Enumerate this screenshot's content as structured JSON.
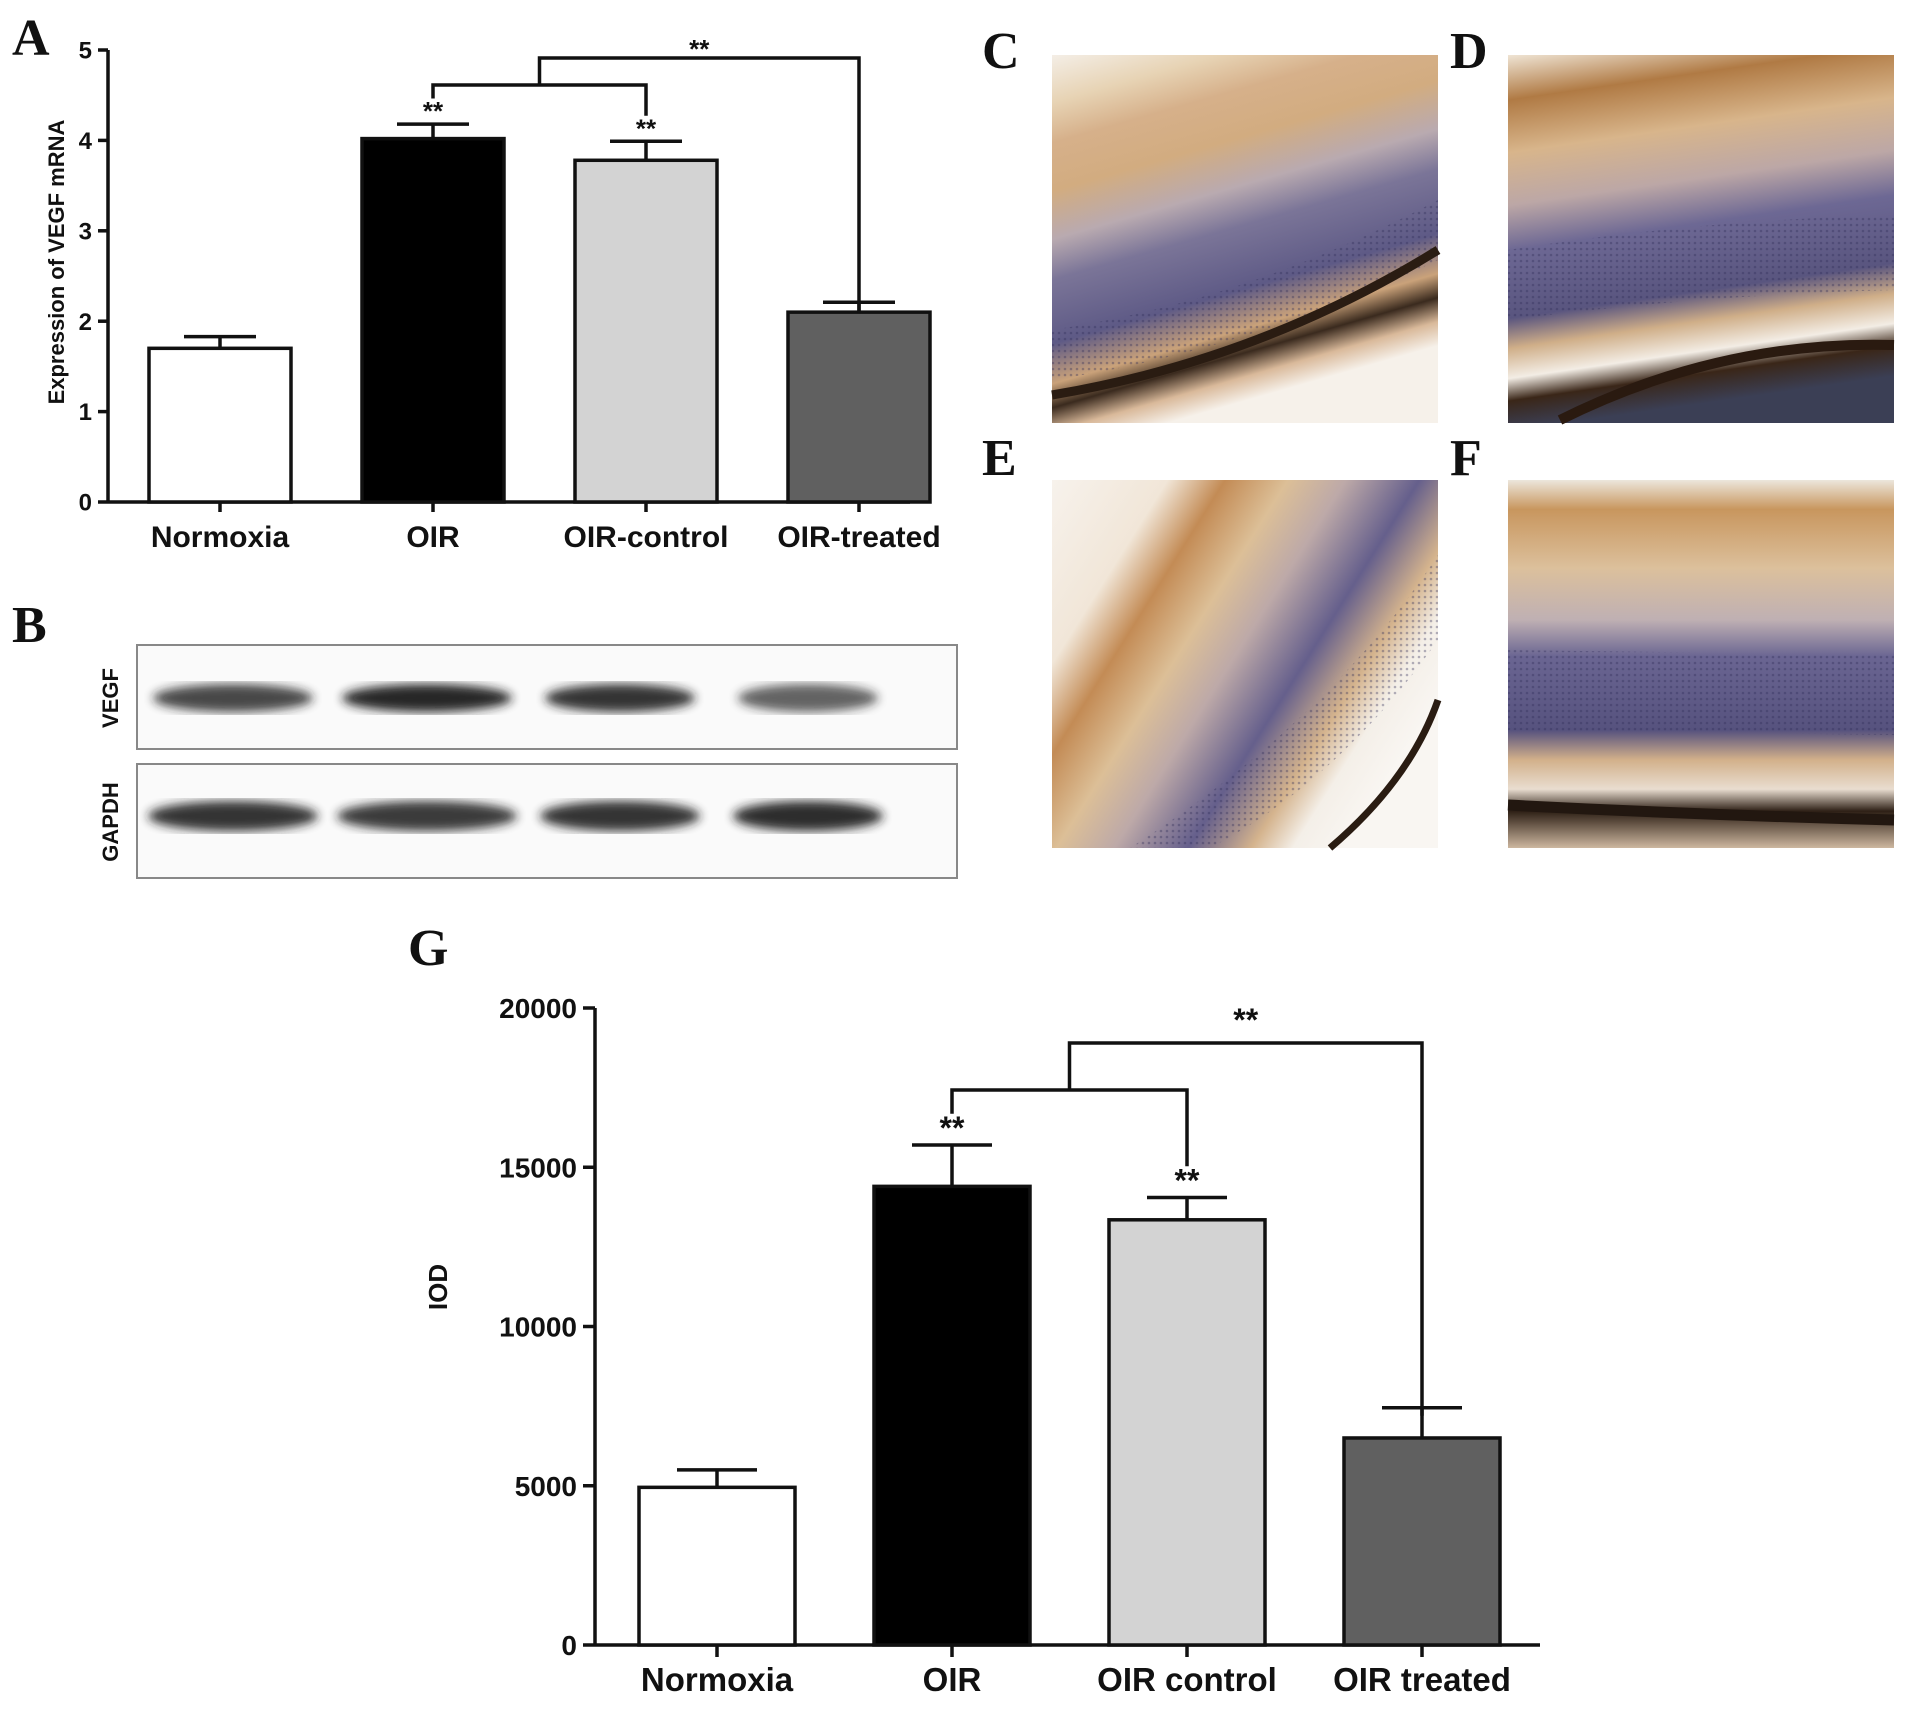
{
  "panels": {
    "A": "A",
    "B": "B",
    "C": "C",
    "D": "D",
    "E": "E",
    "F": "F",
    "G": "G"
  },
  "chart_data": [
    {
      "panel": "A",
      "type": "bar",
      "categories": [
        "Normoxia",
        "OIR",
        "OIR-control",
        "OIR-treated"
      ],
      "values": [
        1.7,
        4.02,
        3.78,
        2.1
      ],
      "errors": [
        0.13,
        0.16,
        0.21,
        0.11
      ],
      "bar_colors": [
        "#ffffff",
        "#000000",
        "#d3d3d3",
        "#606060"
      ],
      "ylabel": "Expression of VEGF mRNA",
      "ylim": [
        0,
        5
      ],
      "yticks": [
        "0",
        "1",
        "2",
        "3",
        "4",
        "5"
      ],
      "significance": "**"
    },
    {
      "panel": "G",
      "type": "bar",
      "categories": [
        "Normoxia",
        "OIR",
        "OIR control",
        "OIR treated"
      ],
      "values": [
        4950,
        14400,
        13350,
        6500
      ],
      "errors": [
        550,
        1300,
        700,
        950
      ],
      "bar_colors": [
        "#ffffff",
        "#000000",
        "#d3d3d3",
        "#606060"
      ],
      "ylabel": "IOD",
      "ylim": [
        0,
        20000
      ],
      "yticks": [
        "0",
        "5000",
        "10000",
        "15000",
        "20000"
      ],
      "significance": "**"
    }
  ],
  "blot": {
    "rows": [
      "VEGF",
      "GAPDH"
    ],
    "vegf_intensity": [
      0.75,
      1.0,
      0.9,
      0.55
    ],
    "gapdh_intensity": [
      0.9,
      0.85,
      0.9,
      0.95
    ]
  },
  "micrographs": {
    "stain_color": "#c69556",
    "nuclear_color": "#4a4a7a"
  }
}
